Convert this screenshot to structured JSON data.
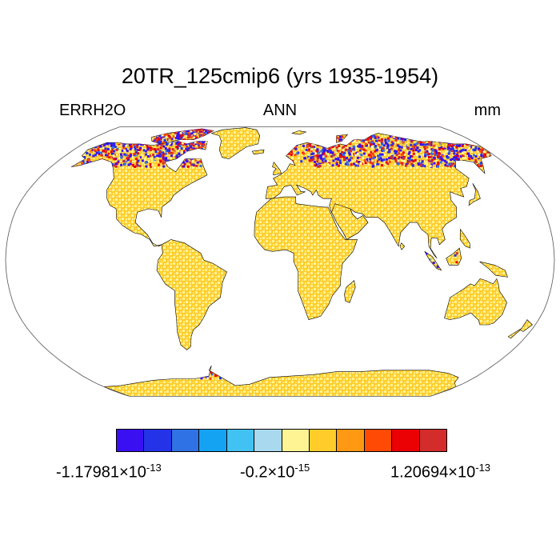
{
  "title": "20TR_125cmip6 (yrs 1935-1954)",
  "left_label": "ERRH2O",
  "center_label": "ANN",
  "right_label": "mm",
  "projection": "robinson",
  "colorbar": {
    "colors": [
      "#3a10f2",
      "#2433e8",
      "#2f72e6",
      "#14a3f2",
      "#42c2f2",
      "#a8d9ef",
      "#fff494",
      "#ffcc2a",
      "#ff9812",
      "#ff4a06",
      "#eb0004",
      "#d42b2b"
    ],
    "labels": [
      {
        "mantissa": "-1.17981",
        "times": "×10",
        "exponent": "-13"
      },
      {
        "mantissa": "-0.2",
        "times": "×10",
        "exponent": "-15"
      },
      {
        "mantissa": "1.20694",
        "times": "×10",
        "exponent": "-13"
      }
    ]
  },
  "colors": {
    "land_light": "#fff494",
    "land_dark": "#ffcc2a",
    "ocean": "#ffffff",
    "coast": "#000000"
  }
}
